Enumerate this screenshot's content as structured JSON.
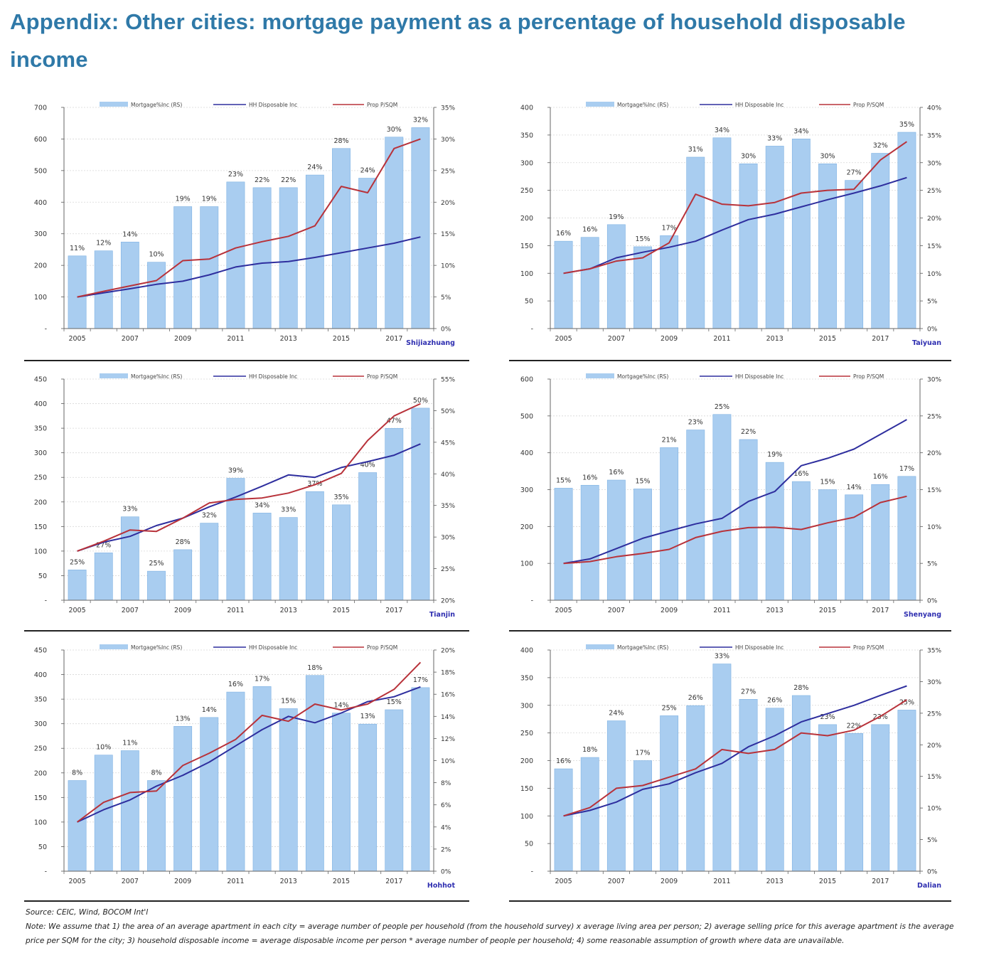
{
  "title": "Appendix: Other cities: mortgage payment as a percentage of household disposable income",
  "source": "Source: CEIC, Wind, BOCOM Int'l",
  "note": "Note: We assume that 1) the area of an average apartment in each city = average number of people per household (from the household survey) x average living area per person; 2) average selling price for this average apartment is the average price per SQM for the city; 3) household disposable income = average disposable income per person * average number of people per household; 4) some reasonable assumption of growth where data are unavailable.",
  "colors": {
    "bar": "#a9cdf0",
    "bar_edge": "#7fb2e3",
    "hh_line": "#2e2e9e",
    "prop_line": "#b8323a",
    "city_label": "#2e2eb0",
    "title": "#2f79a8"
  },
  "legend": {
    "bar": "Mortgage%Inc (RS)",
    "hh": "HH Disposable Inc",
    "prop": "Prop P/SQM"
  },
  "chart_data": [
    {
      "type": "bar",
      "city": "Shijiazhuang",
      "categories": [
        "2005",
        "2006",
        "2007",
        "2008",
        "2009",
        "2010",
        "2011",
        "2012",
        "2013",
        "2014",
        "2015",
        "2016",
        "2017",
        "2018"
      ],
      "x_tick_labels": [
        "2005",
        "2007",
        "2009",
        "2011",
        "2013",
        "2015",
        "2017"
      ],
      "ylim_left": [
        0,
        700
      ],
      "left_ticks": [
        "-",
        "100",
        "200",
        "300",
        "400",
        "500",
        "600",
        "700"
      ],
      "ylim_right": [
        0,
        35
      ],
      "right_ticks": [
        "0%",
        "5%",
        "10%",
        "15%",
        "20%",
        "25%",
        "30%",
        "35%"
      ],
      "bar_values": [
        11.5,
        12.3,
        13.7,
        10.5,
        19.3,
        19.3,
        23.2,
        22.3,
        22.3,
        24.3,
        28.5,
        23.8,
        30.3,
        31.8
      ],
      "bar_labels": [
        "11%",
        "12%",
        "14%",
        "10%",
        "19%",
        "19%",
        "23%",
        "22%",
        "22%",
        "24%",
        "28%",
        "24%",
        "30%",
        "32%"
      ],
      "series": [
        {
          "name": "HH Disposable Inc",
          "values": [
            100,
            113,
            126,
            140,
            150,
            170,
            195,
            207,
            212,
            225,
            240,
            255,
            270,
            290
          ]
        },
        {
          "name": "Prop P/SQM",
          "values": [
            100,
            118,
            135,
            152,
            215,
            220,
            255,
            275,
            292,
            325,
            450,
            430,
            570,
            600
          ]
        }
      ]
    },
    {
      "type": "bar",
      "city": "Taiyuan",
      "categories": [
        "2005",
        "2006",
        "2007",
        "2008",
        "2009",
        "2010",
        "2011",
        "2012",
        "2013",
        "2014",
        "2015",
        "2016",
        "2017",
        "2018"
      ],
      "x_tick_labels": [
        "2005",
        "2007",
        "2009",
        "2011",
        "2013",
        "2015",
        "2017"
      ],
      "ylim_left": [
        0,
        400
      ],
      "left_ticks": [
        "-",
        "50",
        "100",
        "150",
        "200",
        "250",
        "300",
        "350",
        "400"
      ],
      "ylim_right": [
        0,
        40
      ],
      "right_ticks": [
        "0%",
        "5%",
        "10%",
        "15%",
        "20%",
        "25%",
        "30%",
        "35%",
        "40%"
      ],
      "bar_values": [
        15.8,
        16.5,
        18.8,
        14.8,
        16.8,
        31.0,
        34.5,
        29.8,
        33.0,
        34.3,
        29.8,
        26.8,
        31.7,
        35.5
      ],
      "bar_labels": [
        "16%",
        "16%",
        "19%",
        "15%",
        "17%",
        "31%",
        "34%",
        "30%",
        "33%",
        "34%",
        "30%",
        "27%",
        "32%",
        "35%"
      ],
      "series": [
        {
          "name": "HH Disposable Inc",
          "values": [
            100,
            108,
            128,
            138,
            147,
            158,
            178,
            197,
            207,
            220,
            233,
            245,
            258,
            273
          ]
        },
        {
          "name": "Prop P/SQM",
          "values": [
            100,
            108,
            122,
            128,
            155,
            243,
            225,
            222,
            228,
            245,
            250,
            252,
            305,
            338
          ]
        }
      ]
    },
    {
      "type": "bar",
      "city": "Tianjin",
      "categories": [
        "2005",
        "2006",
        "2007",
        "2008",
        "2009",
        "2010",
        "2011",
        "2012",
        "2013",
        "2014",
        "2015",
        "2016",
        "2017",
        "2018"
      ],
      "x_tick_labels": [
        "2005",
        "2007",
        "2009",
        "2011",
        "2013",
        "2015",
        "2017"
      ],
      "ylim_left": [
        0,
        450
      ],
      "left_ticks": [
        "-",
        "50",
        "100",
        "150",
        "200",
        "250",
        "300",
        "350",
        "400",
        "450"
      ],
      "ylim_right": [
        20,
        55
      ],
      "right_ticks": [
        "20%",
        "25%",
        "30%",
        "35%",
        "40%",
        "45%",
        "50%",
        "55%"
      ],
      "bar_values": [
        24.8,
        27.5,
        33.2,
        24.6,
        28.0,
        32.2,
        39.3,
        33.8,
        33.1,
        37.2,
        35.1,
        40.2,
        47.2,
        50.4
      ],
      "bar_labels": [
        "25%",
        "27%",
        "33%",
        "25%",
        "28%",
        "32%",
        "39%",
        "34%",
        "33%",
        "37%",
        "35%",
        "40%",
        "47%",
        "50%"
      ],
      "series": [
        {
          "name": "HH Disposable Inc",
          "values": [
            100,
            118,
            130,
            152,
            167,
            190,
            210,
            232,
            255,
            250,
            270,
            282,
            295,
            318
          ]
        },
        {
          "name": "Prop P/SQM",
          "values": [
            100,
            120,
            143,
            140,
            167,
            198,
            205,
            208,
            218,
            235,
            258,
            325,
            375,
            400
          ]
        }
      ]
    },
    {
      "type": "bar",
      "city": "Shenyang",
      "categories": [
        "2005",
        "2006",
        "2007",
        "2008",
        "2009",
        "2010",
        "2011",
        "2012",
        "2013",
        "2014",
        "2015",
        "2016",
        "2017",
        "2018"
      ],
      "x_tick_labels": [
        "2005",
        "2007",
        "2009",
        "2011",
        "2013",
        "2015",
        "2017"
      ],
      "ylim_left": [
        0,
        600
      ],
      "left_ticks": [
        "-",
        "100",
        "200",
        "300",
        "400",
        "500",
        "600"
      ],
      "ylim_right": [
        0,
        30
      ],
      "right_ticks": [
        "0%",
        "5%",
        "10%",
        "15%",
        "20%",
        "25%",
        "30%"
      ],
      "bar_values": [
        15.2,
        15.6,
        16.3,
        15.1,
        20.7,
        23.1,
        25.2,
        21.8,
        18.7,
        16.1,
        15.0,
        14.3,
        15.7,
        16.8
      ],
      "bar_labels": [
        "15%",
        "16%",
        "16%",
        "15%",
        "21%",
        "23%",
        "25%",
        "22%",
        "19%",
        "16%",
        "15%",
        "14%",
        "16%",
        "17%"
      ],
      "series": [
        {
          "name": "HH Disposable Inc",
          "values": [
            100,
            112,
            140,
            168,
            188,
            207,
            222,
            268,
            295,
            365,
            385,
            410,
            450,
            490
          ]
        },
        {
          "name": "Prop P/SQM",
          "values": [
            100,
            105,
            118,
            127,
            138,
            170,
            187,
            197,
            198,
            192,
            210,
            225,
            265,
            282
          ]
        }
      ]
    },
    {
      "type": "bar",
      "city": "Hohhot",
      "categories": [
        "2005",
        "2006",
        "2007",
        "2008",
        "2009",
        "2010",
        "2011",
        "2012",
        "2013",
        "2014",
        "2015",
        "2016",
        "2017",
        "2018"
      ],
      "x_tick_labels": [
        "2005",
        "2007",
        "2009",
        "2011",
        "2013",
        "2015",
        "2017"
      ],
      "ylim_left": [
        0,
        450
      ],
      "left_ticks": [
        "-",
        "50",
        "100",
        "150",
        "200",
        "250",
        "300",
        "350",
        "400",
        "450"
      ],
      "ylim_right": [
        0,
        20
      ],
      "right_ticks": [
        "0%",
        "2%",
        "4%",
        "6%",
        "8%",
        "10%",
        "12%",
        "14%",
        "16%",
        "18%",
        "20%"
      ],
      "bar_values": [
        8.2,
        10.5,
        10.9,
        8.2,
        13.1,
        13.9,
        16.2,
        16.7,
        14.7,
        17.7,
        14.3,
        13.3,
        14.6,
        16.6
      ],
      "bar_labels": [
        "8%",
        "10%",
        "11%",
        "8%",
        "13%",
        "14%",
        "16%",
        "17%",
        "15%",
        "18%",
        "14%",
        "13%",
        "15%",
        "17%"
      ],
      "series": [
        {
          "name": "HH Disposable Inc",
          "values": [
            100,
            125,
            145,
            173,
            195,
            222,
            255,
            288,
            315,
            302,
            322,
            345,
            355,
            375
          ]
        },
        {
          "name": "Prop P/SQM",
          "values": [
            100,
            140,
            160,
            163,
            215,
            240,
            268,
            317,
            305,
            340,
            328,
            340,
            370,
            425
          ]
        }
      ]
    },
    {
      "type": "bar",
      "city": "Dalian",
      "categories": [
        "2005",
        "2006",
        "2007",
        "2008",
        "2009",
        "2010",
        "2011",
        "2012",
        "2013",
        "2014",
        "2015",
        "2016",
        "2017",
        "2018"
      ],
      "x_tick_labels": [
        "2005",
        "2007",
        "2009",
        "2011",
        "2013",
        "2015",
        "2017"
      ],
      "ylim_left": [
        0,
        400
      ],
      "left_ticks": [
        "-",
        "50",
        "100",
        "150",
        "200",
        "250",
        "300",
        "350",
        "400"
      ],
      "ylim_right": [
        0,
        35
      ],
      "right_ticks": [
        "0%",
        "5%",
        "10%",
        "15%",
        "20%",
        "25%",
        "30%",
        "35%"
      ],
      "bar_values": [
        16.2,
        18.0,
        23.8,
        17.5,
        24.6,
        26.2,
        32.8,
        27.2,
        25.8,
        27.8,
        23.2,
        21.8,
        23.2,
        25.5
      ],
      "bar_labels": [
        "16%",
        "18%",
        "24%",
        "17%",
        "25%",
        "26%",
        "33%",
        "27%",
        "26%",
        "28%",
        "23%",
        "22%",
        "23%",
        "25%"
      ],
      "series": [
        {
          "name": "HH Disposable Inc",
          "values": [
            100,
            110,
            125,
            148,
            158,
            178,
            195,
            225,
            245,
            270,
            285,
            300,
            318,
            335
          ]
        },
        {
          "name": "Prop P/SQM",
          "values": [
            100,
            115,
            150,
            155,
            170,
            185,
            220,
            213,
            220,
            250,
            245,
            255,
            280,
            310
          ]
        }
      ]
    }
  ]
}
